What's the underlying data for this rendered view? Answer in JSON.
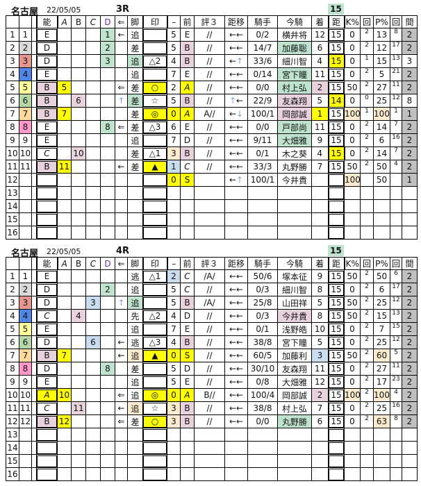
{
  "colors": {
    "y": "#ffff00",
    "p": "#e8d2de",
    "g": "#bfe3cf",
    "b": "#c9dcf0",
    "o": "#fdebcf",
    "gr": "#bfbfbf"
  },
  "waku_colors": [
    "#ffffff",
    "#d9d9d9",
    "#e6958f",
    "#4f86e8",
    "#ffff99",
    "#b6d7a8",
    "#ffd999",
    "#ff99cc"
  ],
  "headers": [
    "",
    "",
    "",
    "能",
    "A",
    "B",
    "C",
    "D",
    "⇐",
    "脚",
    "印",
    "–",
    "前",
    "評３",
    "距移",
    "騎手",
    "今騎",
    "着",
    "距",
    "K%",
    "回",
    "P%",
    "回",
    "間"
  ],
  "races": [
    {
      "venue": "名古屋",
      "date": "22/05/05",
      "race": "3R",
      "dist_header": "15",
      "rows": [
        {
          "no": "1",
          "waku": "1",
          "nou": "E",
          "abcd": [
            "D",
            "1"
          ],
          "arrow": "←",
          "kyaku": "追",
          "mark": "",
          "prev": "5",
          "zen": "E",
          "hyo": "//",
          "ido": "←←",
          "kishu": "0/2",
          "imaki": "横井将",
          "chaku": "12",
          "dist": "15",
          "k": "0",
          "k_n": "2",
          "p": "13",
          "p_n": "8",
          "kan": "2",
          "kan_bg": "gr"
        },
        {
          "no": "2",
          "waku": "2",
          "nou": "D",
          "abcd": [
            "D",
            "2"
          ],
          "arrow": "",
          "kyaku": "差",
          "mark": "",
          "prev": "5",
          "zen": "B",
          "zen_bg": "p",
          "hyo": "//",
          "ido": "←←",
          "kishu": "14/7",
          "imaki": "加藤聡",
          "imaki_bg": "g",
          "chaku": "6",
          "dist": "15",
          "k": "0",
          "k_n": "2",
          "p": "12",
          "p_n": "17",
          "kan": "2",
          "kan_bg": "gr"
        },
        {
          "no": "3",
          "waku": "3",
          "nou": "D",
          "abcd": [
            "D",
            "3"
          ],
          "arrow": "",
          "kyaku": "追",
          "kyaku_bg": "g",
          "mark": "△2",
          "prev": "4",
          "zen": "B",
          "zen_bg": "p",
          "hyo": "//",
          "ido": "←↑",
          "kishu": "33/6",
          "imaki": "細川智",
          "chaku": "4",
          "dist": "15",
          "dist_bg": "y",
          "k": "0",
          "k_n": "1",
          "p": "15",
          "p_n": "13",
          "kan": "3"
        },
        {
          "no": "4",
          "waku": "4",
          "nou": "E",
          "abcd": null,
          "arrow": "",
          "kyaku": "追",
          "mark": "",
          "prev": "7",
          "zen": "E",
          "hyo": "//",
          "ido": "←←",
          "kishu": "0/14",
          "imaki": "宮下瞳",
          "imaki_bg": "g",
          "chaku": "11",
          "dist": "15",
          "k": "0",
          "k_n": "2",
          "p": "5",
          "p_n": "21",
          "kan": "2",
          "kan_bg": "gr"
        },
        {
          "no": "5",
          "waku": "5",
          "nou": "B",
          "nou_bg": "p",
          "abcd": [
            "A",
            "5"
          ],
          "arrow": "⇐",
          "kyaku": "差",
          "mark": "○",
          "mark_bg": "y",
          "prev": "2",
          "zen": "A",
          "zen_bg": "y",
          "hyo": "//",
          "ido": "←←",
          "kishu": "0/0",
          "imaki": "村上弘",
          "imaki_bg": "g",
          "chaku": "2",
          "chaku_bg": "p",
          "dist": "15",
          "k": "50",
          "k_n": "2",
          "p": "27",
          "p_n": "11",
          "kan": "2",
          "kan_bg": "gr"
        },
        {
          "no": "6",
          "waku": "6",
          "nou": "B",
          "nou_bg": "p",
          "abcd": [
            "B",
            "6"
          ],
          "arrow": "↑",
          "kyaku": "差",
          "kyaku_bg": "g",
          "mark": "☆",
          "prev": "5",
          "zen": "B",
          "zen_bg": "p",
          "hyo": "//",
          "ido": "↑←",
          "kishu": "22/9",
          "imaki": "友森翔",
          "imaki_bg": "p",
          "chaku": "5",
          "dist": "14",
          "dist_bg": "y",
          "k": "0",
          "k_n": "0",
          "p": "25",
          "p_n": "12",
          "kan": "8"
        },
        {
          "no": "7",
          "waku": "7",
          "nou": "B",
          "nou_bg": "p",
          "abcd": [
            "A",
            "7"
          ],
          "arrow": "",
          "kyaku": "差",
          "mark": "◎",
          "mark_bg": "y",
          "prev": "0",
          "prev_bg": "y",
          "zen": "A",
          "zen_bg": "y",
          "hyo": "A//",
          "ido": "←↓",
          "kishu": "100/1",
          "imaki": "岡部誠",
          "imaki_bg": "p",
          "chaku": "1",
          "chaku_bg": "y",
          "dist": "15",
          "k": "100",
          "k_bg": "o",
          "k_n": "1",
          "p": "100",
          "p_bg": "o",
          "p_n": "1",
          "kan": "1",
          "kan_bg": "gr"
        },
        {
          "no": "8",
          "waku": "8",
          "nou": "E",
          "abcd": [
            "D",
            "8"
          ],
          "arrow": "⇐",
          "kyaku": "差",
          "mark": "△3",
          "prev": "6",
          "zen": "E",
          "hyo": "//",
          "ido": "←←",
          "kishu": "0/0",
          "imaki": "戸部尚",
          "imaki_bg": "g",
          "chaku": "11",
          "dist": "15",
          "k": "0",
          "k_n": "2",
          "p": "14",
          "p_n": "7",
          "kan": "2",
          "kan_bg": "gr"
        },
        {
          "no": "9",
          "waku": "9",
          "nou": "E",
          "abcd": null,
          "arrow": "",
          "kyaku": "追",
          "mark": "",
          "prev": "7",
          "zen": "D",
          "hyo": "//",
          "ido": "←←",
          "kishu": "9/11",
          "imaki": "大畑雅",
          "imaki_bg": "g",
          "chaku": "9",
          "dist": "15",
          "k": "0",
          "k_n": "2",
          "p": "6",
          "p_n": "16",
          "kan": "2",
          "kan_bg": "gr"
        },
        {
          "no": "10",
          "waku": "10",
          "nou": "C",
          "abcd": [
            "B",
            "10"
          ],
          "arrow": "",
          "kyaku": "差",
          "mark": "△1",
          "prev": "3",
          "prev_bg": "o",
          "zen": "B",
          "zen_bg": "p",
          "hyo": "//",
          "ido": "←←",
          "kishu": "0/1",
          "imaki": "木之葵",
          "chaku": "4",
          "dist": "15",
          "dist_bg": "y",
          "k": "0",
          "k_n": "2",
          "p": "14",
          "p_n": "7",
          "kan": "2",
          "kan_bg": "gr"
        },
        {
          "no": "11",
          "waku": "11",
          "nou": "B",
          "nou_bg": "p",
          "abcd": [
            "A",
            "11"
          ],
          "arrow": "←",
          "kyaku": "差",
          "mark": "▲",
          "mark_bg": "y",
          "prev": "1",
          "prev_bg": "b",
          "zen": "C",
          "hyo": "//",
          "ido": "←←",
          "kishu": "33/3",
          "imaki": "丸野勝",
          "chaku": "7",
          "dist": "15",
          "k": "50",
          "k_n": "2",
          "p": "50",
          "p_n": "4",
          "kan": "2",
          "kan_bg": "gr"
        },
        {
          "no": "12",
          "waku": "",
          "nou": "",
          "abcd": null,
          "arrow": "",
          "kyaku": "",
          "mark": "",
          "prev": "0",
          "prev_bg": "y",
          "zen": "S",
          "zen_bg": "y",
          "hyo": "",
          "ido": "←↑",
          "kishu": "100/1",
          "imaki": "今井貴",
          "chaku": "",
          "dist": "",
          "k": "100",
          "k_bg": "o",
          "k_n": "",
          "p": "50",
          "p_n": "",
          "kan": "1",
          "kan_bg": "gr"
        },
        {
          "no": "13"
        },
        {
          "no": "14"
        },
        {
          "no": "15"
        },
        {
          "no": "16"
        }
      ]
    },
    {
      "venue": "名古屋",
      "date": "22/05/05",
      "race": "4R",
      "dist_header": "15",
      "rows": [
        {
          "no": "1",
          "waku": "1",
          "nou": "E",
          "abcd": null,
          "arrow": "",
          "kyaku": "逃",
          "mark": "△1",
          "prev": "2",
          "prev_bg": "b",
          "zen": "C",
          "hyo": "/A/",
          "ido": "←←",
          "kishu": "50/6",
          "imaki": "塚本征",
          "chaku": "9",
          "dist": "15",
          "k": "50",
          "k_n": "2",
          "p": "50",
          "p_n": "6",
          "kan": "2",
          "kan_bg": "gr"
        },
        {
          "no": "2",
          "waku": "2",
          "nou": "D",
          "abcd": [
            "D",
            "2"
          ],
          "arrow": "",
          "kyaku": "追",
          "mark": "",
          "prev": "5",
          "zen": "C",
          "hyo": "//",
          "ido": "←←",
          "kishu": "0/3",
          "imaki": "細川智",
          "chaku": "8",
          "dist": "15",
          "k": "0",
          "k_n": "2",
          "p": "6",
          "p_n": "17",
          "kan": "2",
          "kan_bg": "gr"
        },
        {
          "no": "3",
          "waku": "3",
          "nou": "D",
          "abcd": [
            "C",
            "3"
          ],
          "arrow": "↑",
          "kyaku": "追",
          "kyaku_bg": "g",
          "mark": "",
          "prev": "5",
          "zen": "B",
          "zen_bg": "p",
          "hyo": "/A/",
          "ido": "←←",
          "kishu": "25/8",
          "imaki": "山田祥",
          "chaku": "5",
          "dist": "15",
          "k": "50",
          "k_n": "2",
          "p": "25",
          "p_n": "12",
          "kan": "2",
          "kan_bg": "gr"
        },
        {
          "no": "4",
          "waku": "4",
          "nou": "C",
          "abcd": [
            "B",
            "4"
          ],
          "arrow": "",
          "kyaku": "先",
          "mark": "△2",
          "prev": "4",
          "zen": "D",
          "hyo": "//",
          "ido": "←←",
          "kishu": "0/3",
          "imaki": "今井貴",
          "imaki_bg": "p",
          "chaku": "8",
          "dist": "15",
          "k": "50",
          "k_n": "2",
          "p": "15",
          "p_n": "13",
          "kan": "2",
          "kan_bg": "gr"
        },
        {
          "no": "5",
          "waku": "5",
          "nou": "E",
          "abcd": null,
          "arrow": "",
          "kyaku": "追",
          "mark": "",
          "prev": "7",
          "zen": "E",
          "hyo": "//",
          "ido": "←←",
          "kishu": "0/1",
          "imaki": "浅野皓",
          "chaku": "10",
          "dist": "15",
          "k": "0",
          "k_n": "2",
          "p": "7",
          "p_n": "15",
          "kan": "2",
          "kan_bg": "gr"
        },
        {
          "no": "6",
          "waku": "6",
          "nou": "D",
          "abcd": [
            "C",
            "6"
          ],
          "arrow": "←",
          "kyaku": "逃",
          "mark": "△3",
          "prev": "4",
          "zen": "B",
          "zen_bg": "p",
          "hyo": "//",
          "ido": "←←",
          "kishu": "38/8",
          "imaki": "宮下瞳",
          "chaku": "5",
          "dist": "15",
          "k": "0",
          "k_n": "2",
          "p": "25",
          "p_n": "12",
          "kan": "2",
          "kan_bg": "gr"
        },
        {
          "no": "7",
          "waku": "7",
          "nou": "B",
          "nou_bg": "p",
          "abcd": [
            "A",
            "7"
          ],
          "arrow": "←",
          "kyaku": "追",
          "kyaku_bg": "o",
          "mark": "▲",
          "mark_bg": "y",
          "prev": "0",
          "prev_bg": "y",
          "zen": "S",
          "zen_bg": "y",
          "hyo": "//",
          "ido": "←←",
          "kishu": "60/5",
          "imaki": "加藤利",
          "chaku": "3",
          "chaku_bg": "b",
          "dist": "15",
          "k": "50",
          "k_n": "2",
          "p": "60",
          "p_bg": "o",
          "p_n": "5",
          "kan": "2",
          "kan_bg": "gr"
        },
        {
          "no": "8",
          "waku": "8",
          "nou": "D",
          "abcd": [
            "D",
            "8"
          ],
          "arrow": "",
          "kyaku": "差",
          "mark": "",
          "prev": "5",
          "zen": "D",
          "hyo": "//",
          "ido": "←←",
          "kishu": "30/10",
          "imaki": "友森翔",
          "chaku": "11",
          "dist": "15",
          "k": "0",
          "k_n": "2",
          "p": "27",
          "p_n": "11",
          "kan": "2",
          "kan_bg": "gr"
        },
        {
          "no": "9",
          "waku": "9",
          "nou": "E",
          "abcd": null,
          "arrow": "",
          "kyaku": "追",
          "mark": "",
          "prev": "5",
          "zen": "E",
          "hyo": "//",
          "ido": "←←",
          "kishu": "0/8",
          "imaki": "大畑雅",
          "chaku": "12",
          "dist": "15",
          "k": "0",
          "k_n": "2",
          "p": "17",
          "p_n": "23",
          "kan": "2",
          "kan_bg": "gr"
        },
        {
          "no": "10",
          "waku": "10",
          "nou": "A",
          "nou_bg": "y",
          "abcd": [
            "A",
            "10"
          ],
          "arrow": "⇐",
          "kyaku": "追",
          "mark": "◎",
          "mark_bg": "y",
          "prev": "0",
          "prev_bg": "y",
          "zen": "A",
          "zen_bg": "y",
          "hyo": "B//",
          "ido": "←←",
          "kishu": "100/4",
          "imaki": "岡部誠",
          "chaku": "2",
          "chaku_bg": "p",
          "dist": "15",
          "k": "100",
          "k_bg": "o",
          "k_n": "2",
          "p": "100",
          "p_bg": "o",
          "p_n": "4",
          "kan": "2",
          "kan_bg": "gr"
        },
        {
          "no": "11",
          "waku": "11",
          "nou": "C",
          "abcd": [
            "B",
            "11"
          ],
          "arrow": "←",
          "kyaku": "追",
          "kyaku_bg": "o",
          "mark": "☆",
          "prev": "3",
          "prev_bg": "o",
          "zen": "B",
          "zen_bg": "p",
          "hyo": "//",
          "ido": "←←",
          "kishu": "38/8",
          "imaki": "村上弘",
          "chaku": "7",
          "dist": "15",
          "k": "0",
          "k_n": "2",
          "p": "25",
          "p_n": "16",
          "kan": "2",
          "kan_bg": "gr"
        },
        {
          "no": "12",
          "waku": "12",
          "nou": "B",
          "nou_bg": "p",
          "abcd": [
            "A",
            "12"
          ],
          "arrow": "⇐",
          "kyaku": "差",
          "mark": "○",
          "mark_bg": "y",
          "prev": "3",
          "prev_bg": "o",
          "zen": "B",
          "zen_bg": "p",
          "hyo": "//",
          "ido": "←←",
          "kishu": "0/0",
          "imaki": "丸野勝",
          "imaki_bg": "g",
          "chaku": "6",
          "dist": "15",
          "k": "0",
          "k_n": "2",
          "p": "63",
          "p_bg": "o",
          "p_n": "8",
          "kan": "2",
          "kan_bg": "gr"
        },
        {
          "no": "13"
        },
        {
          "no": "14"
        },
        {
          "no": "15"
        },
        {
          "no": "16"
        }
      ]
    }
  ]
}
